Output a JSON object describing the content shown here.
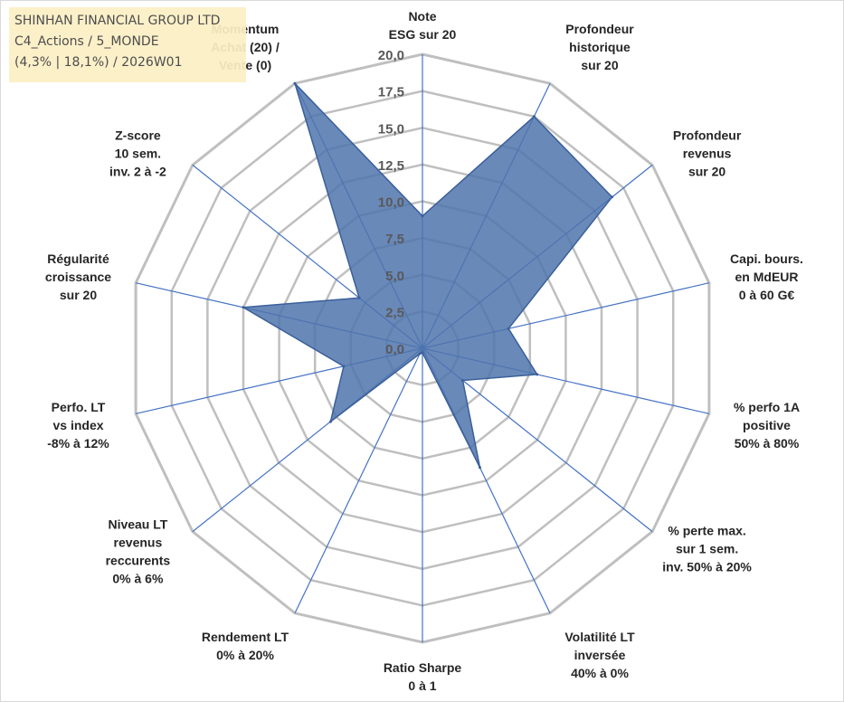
{
  "info": {
    "company": "SHINHAN FINANCIAL GROUP LTD",
    "portfolio": "C4_Actions / 5_MONDE",
    "params": "(4,3% | 18,1%) / 2026W01"
  },
  "chart_data": {
    "type": "radar",
    "title": "",
    "rmin": 0,
    "rmax": 20,
    "tick_step": 2.5,
    "ticks": [
      "0,0",
      "2,5",
      "5,0",
      "7,5",
      "10,0",
      "12,5",
      "15,0",
      "17,5",
      "20,0"
    ],
    "axes": [
      [
        "Note",
        "ESG sur 20"
      ],
      [
        "Profondeur",
        "historique",
        "sur 20"
      ],
      [
        "Profondeur",
        "revenus",
        "sur 20"
      ],
      [
        "Capi. bours.",
        "en MdEUR",
        "0 à 60 G€"
      ],
      [
        "% perfo 1A",
        "positive",
        "50% à 80%"
      ],
      [
        "% perte max.",
        "sur 1 sem.",
        "inv. 50% à 20%"
      ],
      [
        "Volatilité LT",
        "inversée",
        "40% à 0%"
      ],
      [
        "Ratio Sharpe",
        "0 à 1"
      ],
      [
        "Rendement LT",
        "0% à 20%"
      ],
      [
        "Niveau LT",
        "revenus",
        "reccurents",
        "0% à 6%"
      ],
      [
        "Perfo. LT",
        "vs index",
        "-8% à 12%"
      ],
      [
        "Régularité",
        "croissance",
        "sur 20"
      ],
      [
        "Z-score",
        "10 sem.",
        "inv. 2 à -2"
      ],
      [
        "Momentum",
        "Achat (20) /",
        "Vente (0)"
      ]
    ],
    "series": [
      {
        "name": "SHINHAN FINANCIAL GROUP LTD",
        "values": [
          9.0,
          17.5,
          16.5,
          6.0,
          8.0,
          3.5,
          9.0,
          0.3,
          0.4,
          8.0,
          5.5,
          12.5,
          5.5,
          20.0
        ],
        "color": "#4f74ad"
      }
    ],
    "grid_color": "#bfbfbf",
    "spoke_color": "#4472c4"
  }
}
